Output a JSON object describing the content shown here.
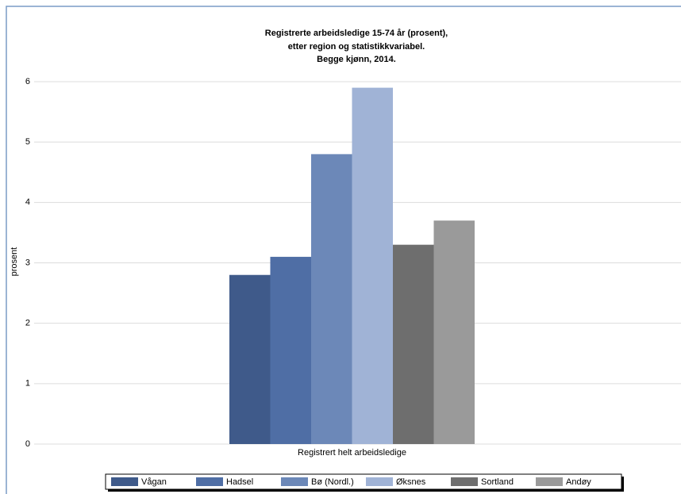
{
  "chart_data": {
    "type": "bar",
    "title": [
      "Registrerte arbeidsledige 15-74 år (prosent),",
      "etter region og statistikkvariabel.",
      "Begge kjønn, 2014."
    ],
    "y_label": "prosent",
    "categories": [
      "Registrert helt arbeidsledige"
    ],
    "series": [
      {
        "name": "Vågan",
        "color": "#3f5a8a",
        "values": [
          2.8
        ]
      },
      {
        "name": "Hadsel",
        "color": "#4f6ea5",
        "values": [
          3.1
        ]
      },
      {
        "name": "Bø (Nordl.)",
        "color": "#6c88b8",
        "values": [
          4.8
        ]
      },
      {
        "name": "Øksnes",
        "color": "#a0b3d6",
        "values": [
          5.9
        ]
      },
      {
        "name": "Sortland",
        "color": "#6e6e6e",
        "values": [
          3.3
        ]
      },
      {
        "name": "Andøy",
        "color": "#9a9a9a",
        "values": [
          3.7
        ]
      }
    ],
    "ylim": [
      0,
      6
    ],
    "yticks": [
      0,
      1,
      2,
      3,
      4,
      5,
      6
    ],
    "grid": true,
    "legend": "bottom"
  }
}
